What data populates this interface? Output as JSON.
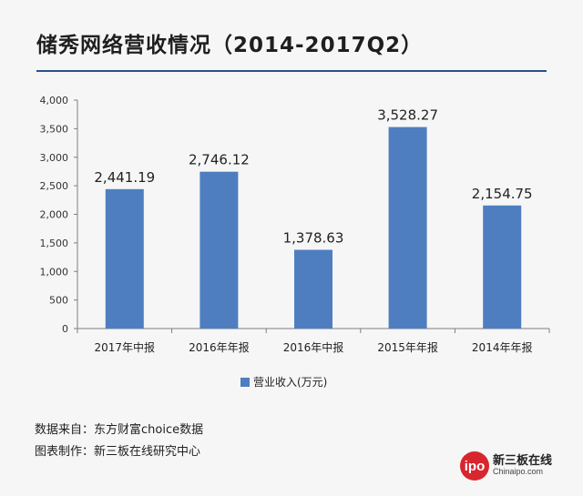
{
  "title": "储秀网络营收情况（2014-2017Q2）",
  "chart_data": {
    "type": "bar",
    "categories": [
      "2017年中报",
      "2016年年报",
      "2016年中报",
      "2015年年报",
      "2014年年报"
    ],
    "series": [
      {
        "name": "营业收入(万元)",
        "values": [
          2441.19,
          2746.12,
          1378.63,
          3528.27,
          2154.75
        ],
        "data_labels": [
          "2,441.19",
          "2,746.12",
          "1,378.63",
          "3,528.27",
          "2,154.75"
        ]
      }
    ],
    "ylim": [
      0,
      4000
    ],
    "yticks": [
      "0",
      "500",
      "1,000",
      "1,500",
      "2,000",
      "2,500",
      "3,000",
      "3,500",
      "4,000"
    ],
    "grid": false,
    "legend_position": "bottom",
    "bar_color": "#4e7ebf"
  },
  "legend": {
    "label": "营业收入(万元)"
  },
  "footer": {
    "source": "数据来自：东方财富choice数据",
    "credit": "图表制作：新三板在线研究中心"
  },
  "logo": {
    "badge": "ipo",
    "cn": "新三板在线",
    "en": "Chinaipo.com"
  },
  "colors": {
    "bar": "#4e7ebf",
    "title_rule": "#2a4e8c",
    "logo": "#d8262e"
  }
}
